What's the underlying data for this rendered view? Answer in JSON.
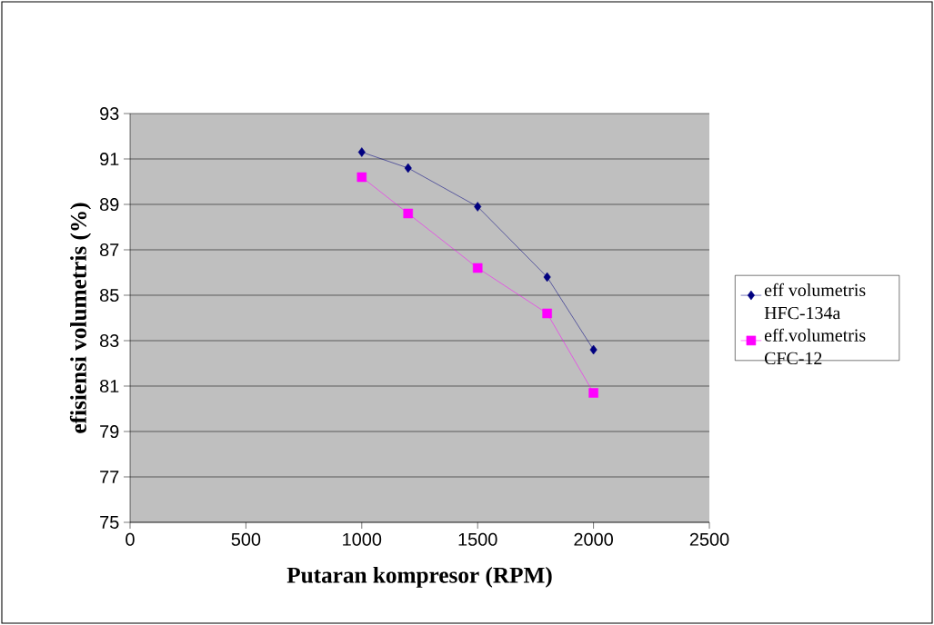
{
  "chart_data": {
    "type": "line",
    "xlabel": "Putaran kompresor (RPM)",
    "ylabel": "efisiensi volumetris (%)",
    "x": [
      1000,
      1200,
      1500,
      1800,
      2000
    ],
    "series": [
      {
        "name": "eff volumetris HFC-134a",
        "color": "#000080",
        "marker": "diamond",
        "values": [
          91.3,
          90.6,
          88.9,
          85.8,
          82.6
        ]
      },
      {
        "name": "eff.volumetris CFC-12",
        "color": "#ff00ff",
        "marker": "square",
        "values": [
          90.2,
          88.6,
          86.2,
          84.2,
          80.7
        ]
      }
    ],
    "xlim": [
      0,
      2500
    ],
    "xticks": [
      0,
      500,
      1000,
      1500,
      2000,
      2500
    ],
    "ylim": [
      75,
      93
    ],
    "yticks": [
      75,
      77,
      79,
      81,
      83,
      85,
      87,
      89,
      91,
      93
    ],
    "grid": "y",
    "legend": "right",
    "line_style": "solid"
  }
}
